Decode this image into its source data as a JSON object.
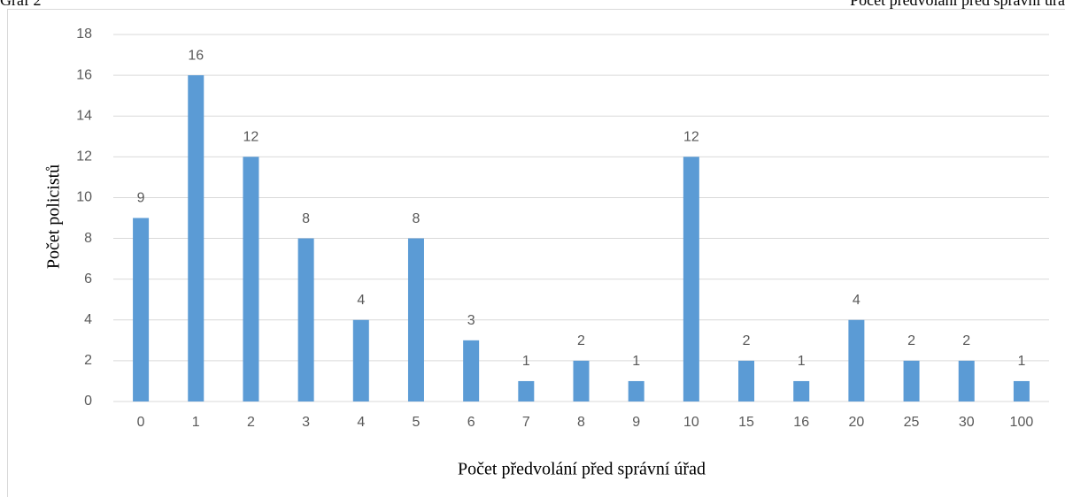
{
  "header": {
    "left": "Graf 2",
    "right": "Počet předvolání před správní úřa"
  },
  "chart_data": {
    "type": "bar",
    "categories": [
      "0",
      "1",
      "2",
      "3",
      "4",
      "5",
      "6",
      "7",
      "8",
      "9",
      "10",
      "15",
      "16",
      "20",
      "25",
      "30",
      "100"
    ],
    "values": [
      9,
      16,
      12,
      8,
      4,
      8,
      3,
      1,
      2,
      1,
      12,
      2,
      1,
      4,
      2,
      2,
      1
    ],
    "color": "#5b9bd5",
    "x_label": "Počet předvolání před správní úřad",
    "y_label": "Počet policistů",
    "ylim": [
      0,
      18
    ],
    "yticks": [
      0,
      2,
      4,
      6,
      8,
      10,
      12,
      14,
      16,
      18
    ],
    "grid": true
  }
}
